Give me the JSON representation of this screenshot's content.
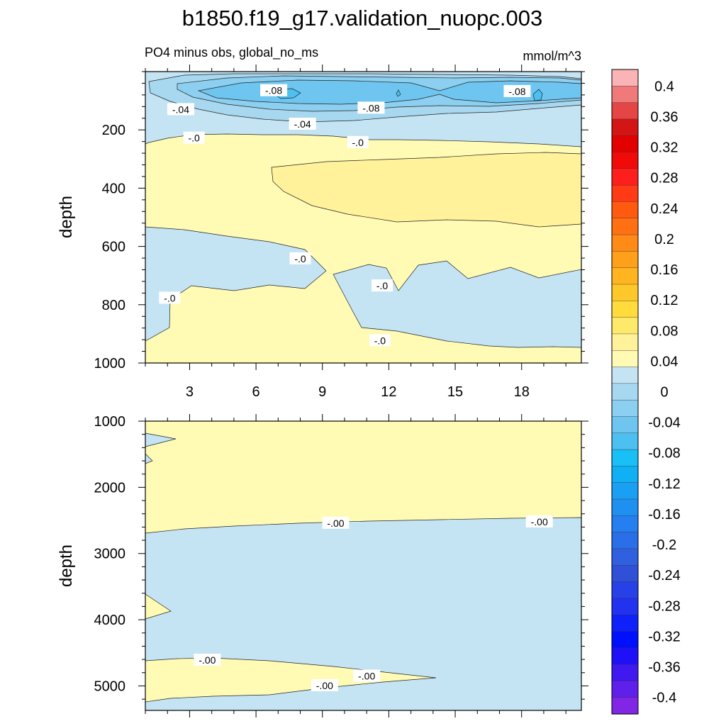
{
  "title": "b1850.f19_g17.validation_nuopc.003",
  "subtitle_left": "PO4 minus obs, global_no_ms",
  "subtitle_right": "mmol/m^3",
  "chart_data": [
    {
      "type": "contour",
      "panel": "upper",
      "ylabel": "depth",
      "xlim": [
        1,
        20.7
      ],
      "ylim": [
        1000,
        0
      ],
      "xticks": [
        "3",
        "6",
        "9",
        "12",
        "15",
        "18"
      ],
      "xtick_values": [
        3,
        6,
        9,
        12,
        15,
        18
      ],
      "yticks": [
        "200",
        "400",
        "600",
        "800",
        "1000"
      ],
      "ytick_values": [
        200,
        400,
        600,
        800,
        1000
      ],
      "contour_labels": [
        {
          "text": "-.08",
          "x": 6.8,
          "y": 65
        },
        {
          "text": "-.08",
          "x": 11.2,
          "y": 125
        },
        {
          "text": "-.08",
          "x": 17.8,
          "y": 68
        },
        {
          "text": "-.04",
          "x": 2.6,
          "y": 130
        },
        {
          "text": "-.04",
          "x": 8.1,
          "y": 180
        },
        {
          "text": "-.0",
          "x": 3.2,
          "y": 228
        },
        {
          "text": "-.0",
          "x": 10.6,
          "y": 243
        },
        {
          "text": "-.0",
          "x": 8.0,
          "y": 642
        },
        {
          "text": "-.0",
          "x": 11.7,
          "y": 735
        },
        {
          "text": "-.0",
          "x": 2.1,
          "y": 777
        },
        {
          "text": "-.0",
          "x": 11.6,
          "y": 923
        }
      ]
    },
    {
      "type": "contour",
      "panel": "lower",
      "ylabel": "depth",
      "xlim": [
        1,
        20.7
      ],
      "ylim": [
        5370,
        1000
      ],
      "yticks": [
        "1000",
        "2000",
        "3000",
        "4000",
        "5000"
      ],
      "ytick_values": [
        1000,
        2000,
        3000,
        4000,
        5000
      ],
      "contour_labels": [
        {
          "text": "-.00",
          "x": 9.6,
          "y": 2540
        },
        {
          "text": "-.00",
          "x": 18.8,
          "y": 2520
        },
        {
          "text": "-.00",
          "x": 3.8,
          "y": 4610
        },
        {
          "text": "-.00",
          "x": 11.0,
          "y": 4850
        },
        {
          "text": "-.00",
          "x": 9.1,
          "y": 4995
        }
      ]
    }
  ],
  "colorbar": {
    "labels": [
      "0.4",
      "0.36",
      "0.32",
      "0.28",
      "0.24",
      "0.2",
      "0.16",
      "0.12",
      "0.08",
      "0.04",
      "0",
      "-0.04",
      "-0.08",
      "-0.12",
      "-0.16",
      "-0.2",
      "-0.24",
      "-0.28",
      "-0.32",
      "-0.36",
      "-0.4"
    ],
    "colors": [
      "#fbb4b6",
      "#f07a7a",
      "#e64545",
      "#d31515",
      "#e30000",
      "#f00a0a",
      "#ff1e1e",
      "#ff3a14",
      "#ff5a10",
      "#ff7012",
      "#ff8a18",
      "#ffa01a",
      "#ffb420",
      "#ffc82a",
      "#ffdc3c",
      "#ffe96a",
      "#fff29a",
      "#fffab4",
      "#c4e4f4",
      "#a8d8f0",
      "#8ccff0",
      "#6ec6f0",
      "#4cc0f0",
      "#18c0f6",
      "#10b0f4",
      "#1aa0f2",
      "#1e90f0",
      "#2480f0",
      "#2a6ee8",
      "#3060e0",
      "#3050d8",
      "#2840e8",
      "#2232f0",
      "#1020f8",
      "#0010ff",
      "#2010f8",
      "#4018f0",
      "#6020ec",
      "#8026e4"
    ]
  }
}
